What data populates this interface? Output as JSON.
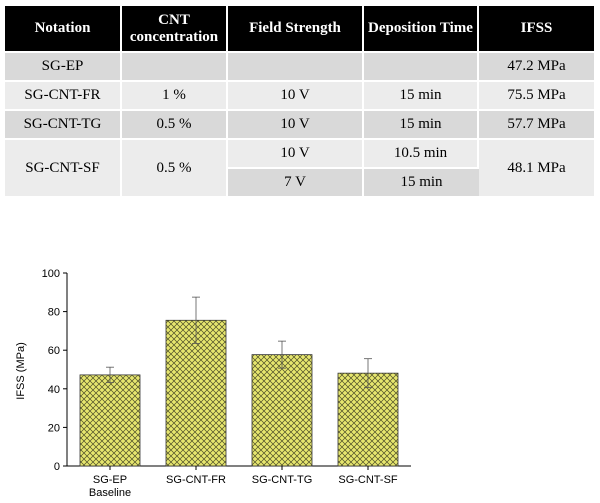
{
  "table": {
    "headers": [
      "Notation",
      "CNT concentration",
      "Field Strength",
      "Deposition Time",
      "IFSS"
    ],
    "rows": [
      {
        "notation": "SG-EP",
        "cnt": "",
        "field": "",
        "time": "",
        "ifss": "47.2 MPa"
      },
      {
        "notation": "SG-CNT-FR",
        "cnt": "1 %",
        "field": "10 V",
        "time": "15 min",
        "ifss": "75.5 MPa"
      },
      {
        "notation": "SG-CNT-TG",
        "cnt": "0.5 %",
        "field": "10 V",
        "time": "15 min",
        "ifss": "57.7 MPa"
      },
      {
        "notation": "SG-CNT-SF",
        "cnt": "0.5 %",
        "field": "10 V",
        "time": "10.5 min",
        "ifss": "48.1 MPa"
      },
      {
        "field": "7 V",
        "time": "15 min"
      }
    ]
  },
  "chart_data": {
    "type": "bar",
    "categories": [
      "SG-EP",
      "SG-CNT-FR",
      "SG-CNT-TG",
      "SG-CNT-SF"
    ],
    "category_sublabels": [
      "Baseline",
      "",
      "",
      ""
    ],
    "values": [
      47.2,
      75.5,
      57.7,
      48.1
    ],
    "errors": [
      4,
      12,
      7,
      7.5
    ],
    "ylabel": "IFSS (MPa)",
    "xlabel": "",
    "ylim": [
      0,
      100
    ],
    "yticks": [
      0,
      20,
      40,
      60,
      80,
      100
    ],
    "grid": false,
    "bar_color": "#e6e66e",
    "hatch": "crosshatch"
  }
}
